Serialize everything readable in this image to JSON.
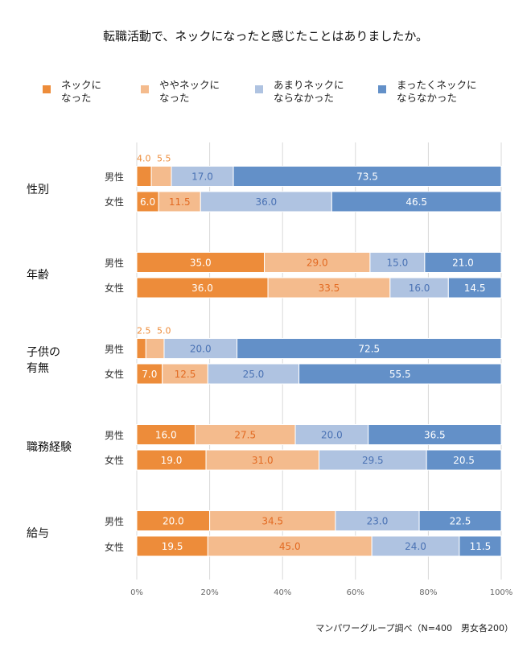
{
  "chart_data": {
    "type": "bar",
    "orientation": "horizontal-stacked-100",
    "title": "転職活動で、ネックになったと感じたことはありましたか。",
    "xlabel": "",
    "ylabel": "",
    "xlim": [
      0,
      100
    ],
    "x_ticks": [
      "0%",
      "20%",
      "40%",
      "60%",
      "80%",
      "100%"
    ],
    "x_tick_values": [
      0,
      20,
      40,
      60,
      80,
      100
    ],
    "grid": true,
    "legend_position": "top",
    "series": [
      {
        "name": "ネックに\nなった",
        "color": "#ED8C3A",
        "label_color": "#FFFFFF"
      },
      {
        "name": "ややネックに\nなった",
        "color": "#F4BB8D",
        "label_color": "#E26A22"
      },
      {
        "name": "あまりネックに\nならなかった",
        "color": "#AFC3E1",
        "label_color": "#4A72B4"
      },
      {
        "name": "まったくネックに\nならなかった",
        "color": "#6390C8",
        "label_color": "#FFFFFF"
      }
    ],
    "groups": [
      {
        "name": "性別",
        "rows": [
          {
            "label": "男性",
            "values": [
              4.0,
              5.5,
              17.0,
              73.5
            ],
            "labels_outside": [
              true,
              true,
              false,
              false
            ]
          },
          {
            "label": "女性",
            "values": [
              6.0,
              11.5,
              36.0,
              46.5
            ],
            "labels_outside": [
              false,
              false,
              false,
              false
            ]
          }
        ]
      },
      {
        "name": "年齢",
        "rows": [
          {
            "label": "男性",
            "values": [
              35.0,
              29.0,
              15.0,
              21.0
            ],
            "labels_outside": [
              false,
              false,
              false,
              false
            ]
          },
          {
            "label": "女性",
            "values": [
              36.0,
              33.5,
              16.0,
              14.5
            ],
            "labels_outside": [
              false,
              false,
              false,
              false
            ]
          }
        ]
      },
      {
        "name": "子供の\n有無",
        "rows": [
          {
            "label": "男性",
            "values": [
              2.5,
              5.0,
              20.0,
              72.5
            ],
            "labels_outside": [
              true,
              true,
              false,
              false
            ]
          },
          {
            "label": "女性",
            "values": [
              7.0,
              12.5,
              25.0,
              55.5
            ],
            "labels_outside": [
              false,
              false,
              false,
              false
            ]
          }
        ]
      },
      {
        "name": "職務経験",
        "rows": [
          {
            "label": "男性",
            "values": [
              16.0,
              27.5,
              20.0,
              36.5
            ],
            "labels_outside": [
              false,
              false,
              false,
              false
            ]
          },
          {
            "label": "女性",
            "values": [
              19.0,
              31.0,
              29.5,
              20.5
            ],
            "labels_outside": [
              false,
              false,
              false,
              false
            ]
          }
        ]
      },
      {
        "name": "給与",
        "rows": [
          {
            "label": "男性",
            "values": [
              20.0,
              34.5,
              23.0,
              22.5
            ],
            "labels_outside": [
              false,
              false,
              false,
              false
            ]
          },
          {
            "label": "女性",
            "values": [
              19.5,
              45.0,
              24.0,
              11.5
            ],
            "labels_outside": [
              false,
              false,
              false,
              false
            ]
          }
        ]
      }
    ],
    "source_note": "マンパワーグループ調べ（N=400　男女各200）"
  }
}
